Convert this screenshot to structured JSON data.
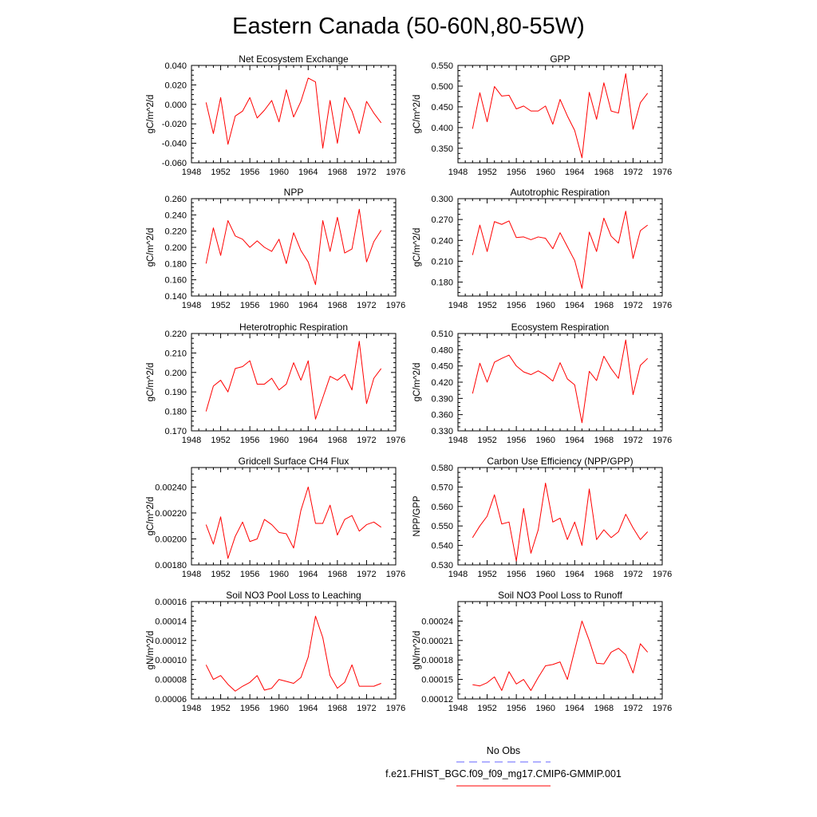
{
  "title": "Eastern Canada (50-60N,80-55W)",
  "legend": [
    {
      "label": "No Obs",
      "color": "#6666ff",
      "dash": true
    },
    {
      "label": "f.e21.FHIST_BGC.f09_f09_mg17.CMIP6-GMMIP.001",
      "color": "#ff0000",
      "dash": false
    }
  ],
  "chart_data": [
    {
      "type": "line",
      "title": "Net Ecosystem Exchange",
      "ylabel": "gC/m^2/d",
      "xlim": [
        1948,
        1976
      ],
      "xticks": [
        1948,
        1952,
        1956,
        1960,
        1964,
        1968,
        1972,
        1976
      ],
      "ylim": [
        -0.06,
        0.04
      ],
      "yticks": [
        "0.040",
        "0.020",
        "0.000",
        "-0.020",
        "-0.040",
        "-0.060"
      ],
      "ytick_values": [
        0.04,
        0.02,
        0.0,
        -0.02,
        -0.04,
        -0.06
      ],
      "series": [
        {
          "color": "#ff0000",
          "x": [
            1950,
            1951,
            1952,
            1953,
            1954,
            1955,
            1956,
            1957,
            1958,
            1959,
            1960,
            1961,
            1962,
            1963,
            1964,
            1965,
            1966,
            1967,
            1968,
            1969,
            1970,
            1971,
            1972,
            1973,
            1974
          ],
          "y": [
            0.002,
            -0.03,
            0.007,
            -0.041,
            -0.012,
            -0.007,
            0.007,
            -0.014,
            -0.006,
            0.004,
            -0.018,
            0.015,
            -0.013,
            0.003,
            0.027,
            0.023,
            -0.045,
            0.004,
            -0.04,
            0.007,
            -0.007,
            -0.03,
            0.003,
            -0.009,
            -0.019
          ]
        }
      ]
    },
    {
      "type": "line",
      "title": "GPP",
      "ylabel": "gC/m^2/d",
      "xlim": [
        1948,
        1976
      ],
      "xticks": [
        1948,
        1952,
        1956,
        1960,
        1964,
        1968,
        1972,
        1976
      ],
      "ylim": [
        0.315,
        0.55
      ],
      "yticks": [
        "0.550",
        "0.500",
        "0.450",
        "0.400",
        "0.350"
      ],
      "ytick_values": [
        0.55,
        0.5,
        0.45,
        0.4,
        0.35
      ],
      "series": [
        {
          "color": "#ff0000",
          "x": [
            1950,
            1951,
            1952,
            1953,
            1954,
            1955,
            1956,
            1957,
            1958,
            1959,
            1960,
            1961,
            1962,
            1963,
            1964,
            1965,
            1966,
            1967,
            1968,
            1969,
            1970,
            1971,
            1972,
            1973,
            1974
          ],
          "y": [
            0.397,
            0.484,
            0.414,
            0.499,
            0.476,
            0.478,
            0.445,
            0.452,
            0.44,
            0.44,
            0.452,
            0.408,
            0.468,
            0.428,
            0.393,
            0.327,
            0.485,
            0.42,
            0.508,
            0.44,
            0.435,
            0.53,
            0.396,
            0.46,
            0.483
          ]
        }
      ]
    },
    {
      "type": "line",
      "title": "NPP",
      "ylabel": "gC/m^2/d",
      "xlim": [
        1948,
        1976
      ],
      "xticks": [
        1948,
        1952,
        1956,
        1960,
        1964,
        1968,
        1972,
        1976
      ],
      "ylim": [
        0.14,
        0.26
      ],
      "yticks": [
        "0.260",
        "0.240",
        "0.220",
        "0.200",
        "0.180",
        "0.160",
        "0.140"
      ],
      "ytick_values": [
        0.26,
        0.24,
        0.22,
        0.2,
        0.18,
        0.16,
        0.14
      ],
      "series": [
        {
          "color": "#ff0000",
          "x": [
            1950,
            1951,
            1952,
            1953,
            1954,
            1955,
            1956,
            1957,
            1958,
            1959,
            1960,
            1961,
            1962,
            1963,
            1964,
            1965,
            1966,
            1967,
            1968,
            1969,
            1970,
            1971,
            1972,
            1973,
            1974
          ],
          "y": [
            0.18,
            0.224,
            0.19,
            0.233,
            0.214,
            0.21,
            0.2,
            0.208,
            0.2,
            0.195,
            0.21,
            0.18,
            0.218,
            0.196,
            0.182,
            0.154,
            0.233,
            0.195,
            0.237,
            0.193,
            0.198,
            0.247,
            0.182,
            0.207,
            0.221
          ]
        }
      ]
    },
    {
      "type": "line",
      "title": "Autotrophic Respiration",
      "ylabel": "gC/m^2/d",
      "xlim": [
        1948,
        1976
      ],
      "xticks": [
        1948,
        1952,
        1956,
        1960,
        1964,
        1968,
        1972,
        1976
      ],
      "ylim": [
        0.16,
        0.3
      ],
      "yticks": [
        "0.300",
        "0.270",
        "0.240",
        "0.210",
        "0.180"
      ],
      "ytick_values": [
        0.3,
        0.27,
        0.24,
        0.21,
        0.18
      ],
      "series": [
        {
          "color": "#ff0000",
          "x": [
            1950,
            1951,
            1952,
            1953,
            1954,
            1955,
            1956,
            1957,
            1958,
            1959,
            1960,
            1961,
            1962,
            1963,
            1964,
            1965,
            1966,
            1967,
            1968,
            1969,
            1970,
            1971,
            1972,
            1973,
            1974
          ],
          "y": [
            0.219,
            0.262,
            0.224,
            0.267,
            0.263,
            0.268,
            0.244,
            0.245,
            0.241,
            0.245,
            0.243,
            0.228,
            0.251,
            0.231,
            0.211,
            0.171,
            0.252,
            0.224,
            0.272,
            0.246,
            0.236,
            0.282,
            0.214,
            0.254,
            0.262
          ]
        }
      ]
    },
    {
      "type": "line",
      "title": "Heterotrophic Respiration",
      "ylabel": "gC/m^2/d",
      "xlim": [
        1948,
        1976
      ],
      "xticks": [
        1948,
        1952,
        1956,
        1960,
        1964,
        1968,
        1972,
        1976
      ],
      "ylim": [
        0.17,
        0.22
      ],
      "yticks": [
        "0.220",
        "0.210",
        "0.200",
        "0.190",
        "0.180",
        "0.170"
      ],
      "ytick_values": [
        0.22,
        0.21,
        0.2,
        0.19,
        0.18,
        0.17
      ],
      "series": [
        {
          "color": "#ff0000",
          "x": [
            1950,
            1951,
            1952,
            1953,
            1954,
            1955,
            1956,
            1957,
            1958,
            1959,
            1960,
            1961,
            1962,
            1963,
            1964,
            1965,
            1966,
            1967,
            1968,
            1969,
            1970,
            1971,
            1972,
            1973,
            1974
          ],
          "y": [
            0.18,
            0.193,
            0.196,
            0.19,
            0.202,
            0.203,
            0.206,
            0.194,
            0.194,
            0.197,
            0.191,
            0.194,
            0.205,
            0.196,
            0.206,
            0.176,
            0.187,
            0.198,
            0.196,
            0.199,
            0.191,
            0.216,
            0.184,
            0.197,
            0.202
          ]
        }
      ]
    },
    {
      "type": "line",
      "title": "Ecosystem Respiration",
      "ylabel": "gC/m^2/d",
      "xlim": [
        1948,
        1976
      ],
      "xticks": [
        1948,
        1952,
        1956,
        1960,
        1964,
        1968,
        1972,
        1976
      ],
      "ylim": [
        0.33,
        0.51
      ],
      "yticks": [
        "0.510",
        "0.480",
        "0.450",
        "0.420",
        "0.390",
        "0.360",
        "0.330"
      ],
      "ytick_values": [
        0.51,
        0.48,
        0.45,
        0.42,
        0.39,
        0.36,
        0.33
      ],
      "series": [
        {
          "color": "#ff0000",
          "x": [
            1950,
            1951,
            1952,
            1953,
            1954,
            1955,
            1956,
            1957,
            1958,
            1959,
            1960,
            1961,
            1962,
            1963,
            1964,
            1965,
            1966,
            1967,
            1968,
            1969,
            1970,
            1971,
            1972,
            1973,
            1974
          ],
          "y": [
            0.399,
            0.455,
            0.42,
            0.457,
            0.464,
            0.47,
            0.45,
            0.439,
            0.434,
            0.441,
            0.433,
            0.422,
            0.456,
            0.426,
            0.415,
            0.345,
            0.44,
            0.423,
            0.468,
            0.445,
            0.427,
            0.498,
            0.397,
            0.451,
            0.464
          ]
        }
      ]
    },
    {
      "type": "line",
      "title": "Gridcell Surface CH4 Flux",
      "ylabel": "gC/m^2/d",
      "xlim": [
        1948,
        1976
      ],
      "xticks": [
        1948,
        1952,
        1956,
        1960,
        1964,
        1968,
        1972,
        1976
      ],
      "ylim": [
        0.0018,
        0.00255
      ],
      "yticks": [
        "0.00240",
        "0.00220",
        "0.00200",
        "0.00180"
      ],
      "ytick_values": [
        0.0024,
        0.0022,
        0.002,
        0.0018
      ],
      "series": [
        {
          "color": "#ff0000",
          "x": [
            1950,
            1951,
            1952,
            1953,
            1954,
            1955,
            1956,
            1957,
            1958,
            1959,
            1960,
            1961,
            1962,
            1963,
            1964,
            1965,
            1966,
            1967,
            1968,
            1969,
            1970,
            1971,
            1972,
            1973,
            1974
          ],
          "y": [
            0.00211,
            0.00196,
            0.00217,
            0.00185,
            0.00202,
            0.00213,
            0.00198,
            0.002,
            0.00215,
            0.00211,
            0.00205,
            0.00204,
            0.00193,
            0.00222,
            0.0024,
            0.00212,
            0.00212,
            0.00226,
            0.00203,
            0.00215,
            0.00218,
            0.00206,
            0.00211,
            0.00213,
            0.00209
          ]
        }
      ]
    },
    {
      "type": "line",
      "title": "Carbon Use Efficiency (NPP/GPP)",
      "ylabel": "NPP/GPP",
      "xlim": [
        1948,
        1976
      ],
      "xticks": [
        1948,
        1952,
        1956,
        1960,
        1964,
        1968,
        1972,
        1976
      ],
      "ylim": [
        0.53,
        0.58
      ],
      "yticks": [
        "0.580",
        "0.570",
        "0.560",
        "0.550",
        "0.540",
        "0.530"
      ],
      "ytick_values": [
        0.58,
        0.57,
        0.56,
        0.55,
        0.54,
        0.53
      ],
      "series": [
        {
          "color": "#ff0000",
          "x": [
            1950,
            1951,
            1952,
            1953,
            1954,
            1955,
            1956,
            1957,
            1958,
            1959,
            1960,
            1961,
            1962,
            1963,
            1964,
            1965,
            1966,
            1967,
            1968,
            1969,
            1970,
            1971,
            1972,
            1973,
            1974
          ],
          "y": [
            0.544,
            0.55,
            0.555,
            0.566,
            0.551,
            0.552,
            0.532,
            0.559,
            0.536,
            0.548,
            0.572,
            0.552,
            0.554,
            0.543,
            0.552,
            0.54,
            0.569,
            0.543,
            0.548,
            0.544,
            0.547,
            0.556,
            0.549,
            0.543,
            0.547
          ]
        }
      ]
    },
    {
      "type": "line",
      "title": "Soil NO3 Pool Loss to Leaching",
      "ylabel": "gN/m^2/d",
      "xlim": [
        1948,
        1976
      ],
      "xticks": [
        1948,
        1952,
        1956,
        1960,
        1964,
        1968,
        1972,
        1976
      ],
      "ylim": [
        6e-05,
        0.00016
      ],
      "yticks": [
        "0.00016",
        "0.00014",
        "0.00012",
        "0.00010",
        "0.00008",
        "0.00006"
      ],
      "ytick_values": [
        0.00016,
        0.00014,
        0.00012,
        0.0001,
        8e-05,
        6e-05
      ],
      "series": [
        {
          "color": "#ff0000",
          "x": [
            1950,
            1951,
            1952,
            1953,
            1954,
            1955,
            1956,
            1957,
            1958,
            1959,
            1960,
            1961,
            1962,
            1963,
            1964,
            1965,
            1966,
            1967,
            1968,
            1969,
            1970,
            1971,
            1972,
            1973,
            1974
          ],
          "y": [
            9.5e-05,
            8e-05,
            8.4e-05,
            7.5e-05,
            6.8e-05,
            7.3e-05,
            7.7e-05,
            8.4e-05,
            6.9e-05,
            7.1e-05,
            8e-05,
            7.8e-05,
            7.6e-05,
            8.2e-05,
            0.000103,
            0.000145,
            0.000123,
            8.4e-05,
            7.1e-05,
            7.7e-05,
            9.5e-05,
            7.3e-05,
            7.3e-05,
            7.3e-05,
            7.6e-05
          ]
        }
      ]
    },
    {
      "type": "line",
      "title": "Soil NO3 Pool Loss to Runoff",
      "ylabel": "gN/m^2/d",
      "xlim": [
        1948,
        1976
      ],
      "xticks": [
        1948,
        1952,
        1956,
        1960,
        1964,
        1968,
        1972,
        1976
      ],
      "ylim": [
        0.00012,
        0.00027
      ],
      "yticks": [
        "0.00024",
        "0.00021",
        "0.00018",
        "0.00015",
        "0.00012"
      ],
      "ytick_values": [
        0.00024,
        0.00021,
        0.00018,
        0.00015,
        0.00012
      ],
      "series": [
        {
          "color": "#ff0000",
          "x": [
            1950,
            1951,
            1952,
            1953,
            1954,
            1955,
            1956,
            1957,
            1958,
            1959,
            1960,
            1961,
            1962,
            1963,
            1964,
            1965,
            1966,
            1967,
            1968,
            1969,
            1970,
            1971,
            1972,
            1973,
            1974
          ],
          "y": [
            0.000142,
            0.00014,
            0.000145,
            0.000154,
            0.000133,
            0.000162,
            0.000143,
            0.00015,
            0.000133,
            0.000153,
            0.000171,
            0.000173,
            0.000177,
            0.00015,
            0.000195,
            0.00024,
            0.00021,
            0.000175,
            0.000174,
            0.000192,
            0.000198,
            0.000188,
            0.00016,
            0.000205,
            0.000192
          ]
        }
      ]
    }
  ]
}
